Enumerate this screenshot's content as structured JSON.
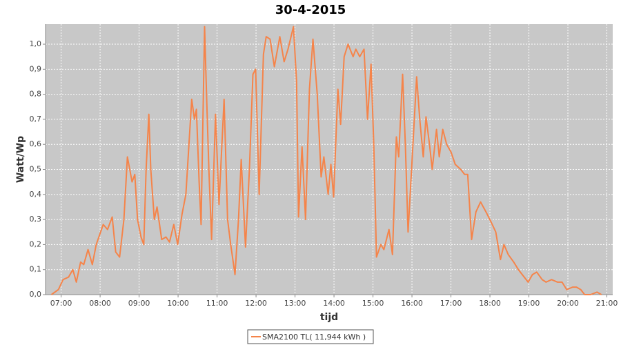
{
  "chart_data": {
    "type": "line",
    "title": "30-4-2015",
    "x_label": "tijd",
    "y_label": "Watt/Wp",
    "x": [
      6.75,
      6.93,
      7.05,
      7.19,
      7.3,
      7.39,
      7.5,
      7.58,
      7.69,
      7.8,
      7.9,
      8.08,
      8.19,
      8.31,
      8.4,
      8.5,
      8.61,
      8.7,
      8.82,
      8.89,
      8.96,
      9.05,
      9.12,
      9.18,
      9.25,
      9.3,
      9.39,
      9.46,
      9.58,
      9.69,
      9.78,
      9.89,
      9.99,
      10.1,
      10.2,
      10.35,
      10.42,
      10.47,
      10.54,
      10.59,
      10.68,
      10.73,
      10.79,
      10.86,
      10.96,
      11.05,
      11.18,
      11.27,
      11.35,
      11.46,
      11.55,
      11.62,
      11.73,
      11.83,
      11.92,
      11.99,
      12.08,
      12.19,
      12.26,
      12.36,
      12.47,
      12.61,
      12.72,
      12.82,
      12.96,
      13.04,
      13.09,
      13.18,
      13.27,
      13.37,
      13.46,
      13.57,
      13.67,
      13.74,
      13.85,
      13.92,
      13.99,
      14.1,
      14.17,
      14.26,
      14.36,
      14.49,
      14.56,
      14.66,
      14.77,
      14.86,
      14.95,
      15.02,
      15.09,
      15.2,
      15.28,
      15.41,
      15.5,
      15.6,
      15.66,
      15.76,
      15.83,
      15.9,
      15.99,
      16.12,
      16.2,
      16.29,
      16.36,
      16.45,
      16.52,
      16.63,
      16.7,
      16.79,
      16.89,
      17.0,
      17.11,
      17.25,
      17.35,
      17.43,
      17.53,
      17.64,
      17.76,
      17.9,
      18.03,
      18.15,
      18.27,
      18.36,
      18.47,
      18.61,
      18.73,
      18.88,
      18.98,
      19.09,
      19.2,
      19.34,
      19.44,
      19.58,
      19.73,
      19.85,
      19.97,
      20.12,
      20.22,
      20.33,
      20.43,
      20.58,
      20.75,
      20.86
    ],
    "series": [
      {
        "name": "SMA2100 TL( 11,944 kWh )",
        "color": "#f5844a",
        "values": [
          0,
          0.02,
          0.06,
          0.07,
          0.1,
          0.05,
          0.13,
          0.12,
          0.18,
          0.12,
          0.2,
          0.28,
          0.26,
          0.31,
          0.17,
          0.15,
          0.3,
          0.55,
          0.45,
          0.48,
          0.3,
          0.23,
          0.2,
          0.5,
          0.72,
          0.5,
          0.3,
          0.35,
          0.22,
          0.23,
          0.21,
          0.28,
          0.2,
          0.32,
          0.4,
          0.78,
          0.7,
          0.74,
          0.45,
          0.28,
          1.07,
          0.8,
          0.5,
          0.22,
          0.72,
          0.36,
          0.78,
          0.3,
          0.2,
          0.08,
          0.3,
          0.54,
          0.19,
          0.5,
          0.88,
          0.9,
          0.4,
          0.96,
          1.03,
          1.02,
          0.91,
          1.03,
          0.93,
          0.98,
          1.07,
          0.85,
          0.31,
          0.59,
          0.3,
          0.82,
          1.02,
          0.8,
          0.47,
          0.55,
          0.4,
          0.52,
          0.39,
          0.82,
          0.68,
          0.95,
          1.0,
          0.95,
          0.98,
          0.95,
          0.98,
          0.7,
          0.92,
          0.6,
          0.15,
          0.2,
          0.18,
          0.26,
          0.16,
          0.63,
          0.55,
          0.88,
          0.6,
          0.25,
          0.5,
          0.87,
          0.7,
          0.55,
          0.71,
          0.6,
          0.5,
          0.66,
          0.55,
          0.66,
          0.6,
          0.57,
          0.52,
          0.5,
          0.48,
          0.48,
          0.22,
          0.33,
          0.37,
          0.33,
          0.29,
          0.25,
          0.14,
          0.2,
          0.16,
          0.13,
          0.1,
          0.07,
          0.05,
          0.08,
          0.09,
          0.06,
          0.05,
          0.06,
          0.05,
          0.05,
          0.02,
          0.03,
          0.03,
          0.02,
          0,
          0,
          0.01,
          0
        ]
      }
    ],
    "xlim": [
      6.6,
      21.15
    ],
    "ylim": [
      0,
      1.08
    ],
    "xticks": [
      {
        "value": 7,
        "label": "07:00"
      },
      {
        "value": 8,
        "label": "08:00"
      },
      {
        "value": 9,
        "label": "09:00"
      },
      {
        "value": 10,
        "label": "10:00"
      },
      {
        "value": 11,
        "label": "11:00"
      },
      {
        "value": 12,
        "label": "12:00"
      },
      {
        "value": 13,
        "label": "13:00"
      },
      {
        "value": 14,
        "label": "14:00"
      },
      {
        "value": 15,
        "label": "15:00"
      },
      {
        "value": 16,
        "label": "16:00"
      },
      {
        "value": 17,
        "label": "17:00"
      },
      {
        "value": 18,
        "label": "18:00"
      },
      {
        "value": 19,
        "label": "19:00"
      },
      {
        "value": 20,
        "label": "20:00"
      },
      {
        "value": 21,
        "label": "21:00"
      }
    ],
    "yticks": [
      {
        "value": 0,
        "label": "0,0"
      },
      {
        "value": 0.1,
        "label": "0,1"
      },
      {
        "value": 0.2,
        "label": "0,2"
      },
      {
        "value": 0.3,
        "label": "0,3"
      },
      {
        "value": 0.4,
        "label": "0,4"
      },
      {
        "value": 0.5,
        "label": "0,5"
      },
      {
        "value": 0.6,
        "label": "0,6"
      },
      {
        "value": 0.7,
        "label": "0,7"
      },
      {
        "value": 0.8,
        "label": "0,8"
      },
      {
        "value": 0.9,
        "label": "0,9"
      },
      {
        "value": 1.0,
        "label": "1,0"
      }
    ],
    "grid": true,
    "legend": "bottom"
  }
}
